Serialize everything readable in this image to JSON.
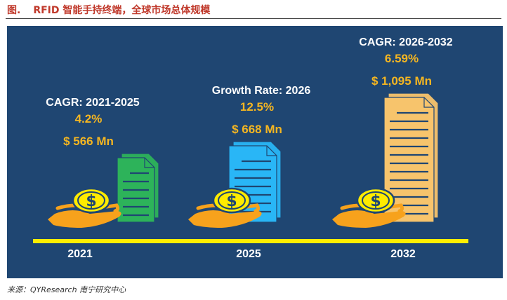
{
  "title": {
    "fig_label": "图.",
    "text": "RFID 智能手持终端，全球市场总体规模"
  },
  "source": "来源：QYResearch 南宁研究中心",
  "colors": {
    "panel": "#1f4672",
    "value_text": "#f5b621",
    "label_text": "#ffffff",
    "axis_bar": "#ffee00",
    "coin": "#ffeb00",
    "hand": "#f7a21c",
    "doc_2021": "#2db35a",
    "doc_2025": "#29b6f6",
    "doc_2032": "#f7c46c"
  },
  "chart_data": {
    "type": "bar",
    "categories": [
      "2021",
      "2025",
      "2032"
    ],
    "values": [
      566,
      668,
      1095
    ],
    "unit": "Mn",
    "value_labels": [
      "$ 566 Mn",
      "$ 668 Mn",
      "$ 1,095 Mn"
    ],
    "annotations": [
      {
        "label": "CAGR: 2021-2025",
        "rate": "4.2%"
      },
      {
        "label": "Growth Rate: 2026",
        "rate": "12.5%"
      },
      {
        "label": "CAGR: 2026-2032",
        "rate": "6.59%"
      }
    ],
    "icon": "dollar-coin-on-hand-with-document"
  }
}
